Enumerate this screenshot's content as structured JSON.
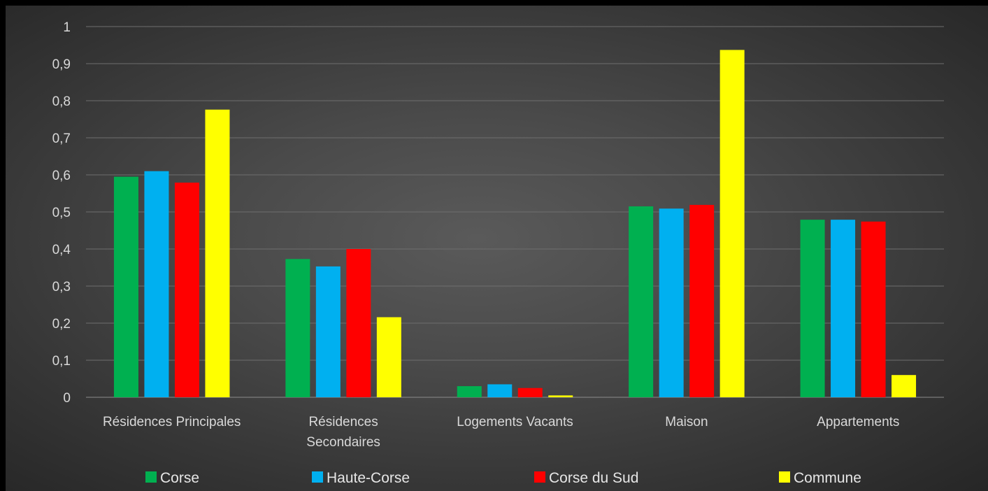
{
  "chart_data": {
    "type": "bar",
    "categories": [
      [
        "Résidences Principales"
      ],
      [
        "Résidences",
        "Secondaires"
      ],
      [
        "Logements Vacants"
      ],
      [
        "Maison"
      ],
      [
        "Appartements"
      ]
    ],
    "series": [
      {
        "name": "Corse",
        "color": "#00b050",
        "values": [
          0.595,
          0.373,
          0.03,
          0.515,
          0.479
        ]
      },
      {
        "name": "Haute-Corse",
        "color": "#00b0f0",
        "values": [
          0.61,
          0.353,
          0.035,
          0.509,
          0.479
        ]
      },
      {
        "name": "Corse du Sud",
        "color": "#ff0000",
        "values": [
          0.579,
          0.4,
          0.025,
          0.519,
          0.474
        ]
      },
      {
        "name": "Commune",
        "color": "#ffff00",
        "values": [
          0.776,
          0.216,
          0.005,
          0.937,
          0.06
        ]
      }
    ],
    "ylim": [
      0,
      1
    ],
    "yticks": [
      "0",
      "0,1",
      "0,2",
      "0,3",
      "0,4",
      "0,5",
      "0,6",
      "0,7",
      "0,8",
      "0,9",
      "1"
    ],
    "grid": true,
    "legend": "bottom"
  }
}
